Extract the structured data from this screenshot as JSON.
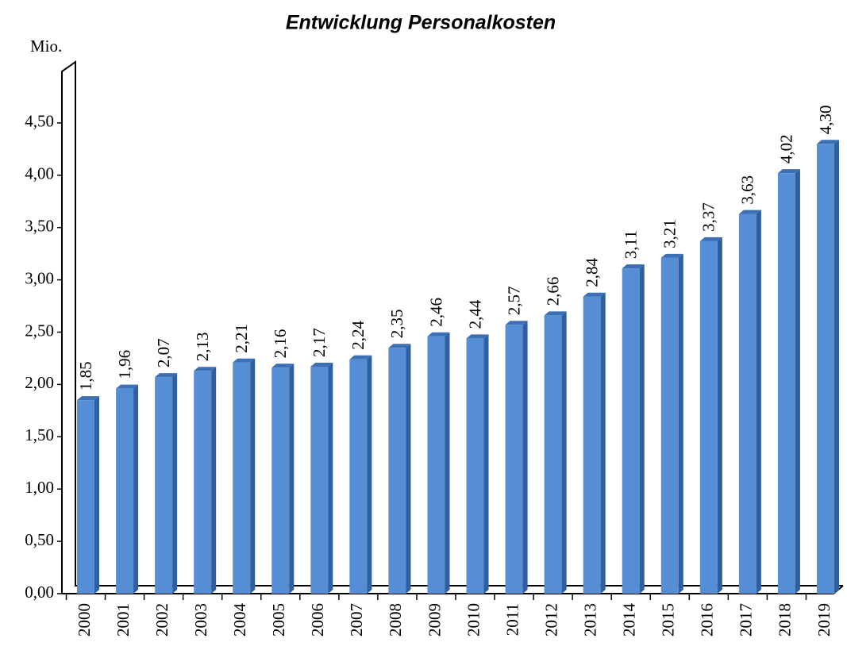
{
  "chart_data": {
    "type": "bar3d",
    "title": "Entwicklung Personalkosten",
    "y_label": "Mio.",
    "categories": [
      "2000",
      "2001",
      "2002",
      "2003",
      "2004",
      "2005",
      "2006",
      "2007",
      "2008",
      "2009",
      "2010",
      "2011",
      "2012",
      "2013",
      "2014",
      "2015",
      "2016",
      "2017",
      "2018",
      "2019"
    ],
    "values": [
      1.85,
      1.96,
      2.07,
      2.13,
      2.21,
      2.16,
      2.17,
      2.24,
      2.35,
      2.46,
      2.44,
      2.57,
      2.66,
      2.84,
      3.11,
      3.21,
      3.37,
      3.63,
      4.02,
      4.3
    ],
    "value_labels": [
      "1,85",
      "1,96",
      "2,07",
      "2,13",
      "2,21",
      "2,16",
      "2,17",
      "2,24",
      "2,35",
      "2,46",
      "2,44",
      "2,57",
      "2,66",
      "2,84",
      "3,11",
      "3,21",
      "3,37",
      "3,63",
      "4,02",
      "4,30"
    ],
    "color": "#558ed5",
    "ylim": [
      0,
      5
    ],
    "yticks": [
      {
        "value": 0,
        "label": "0,00"
      },
      {
        "value": 0.5,
        "label": "0,50"
      },
      {
        "value": 1,
        "label": "1,00"
      },
      {
        "value": 1.5,
        "label": "1,50"
      },
      {
        "value": 2,
        "label": "2,00"
      },
      {
        "value": 2.5,
        "label": "2,50"
      },
      {
        "value": 3,
        "label": "3,00"
      },
      {
        "value": 3.5,
        "label": "3,50"
      },
      {
        "value": 4,
        "label": "4,00"
      },
      {
        "value": 4.5,
        "label": "4,50"
      }
    ],
    "grid": false
  }
}
